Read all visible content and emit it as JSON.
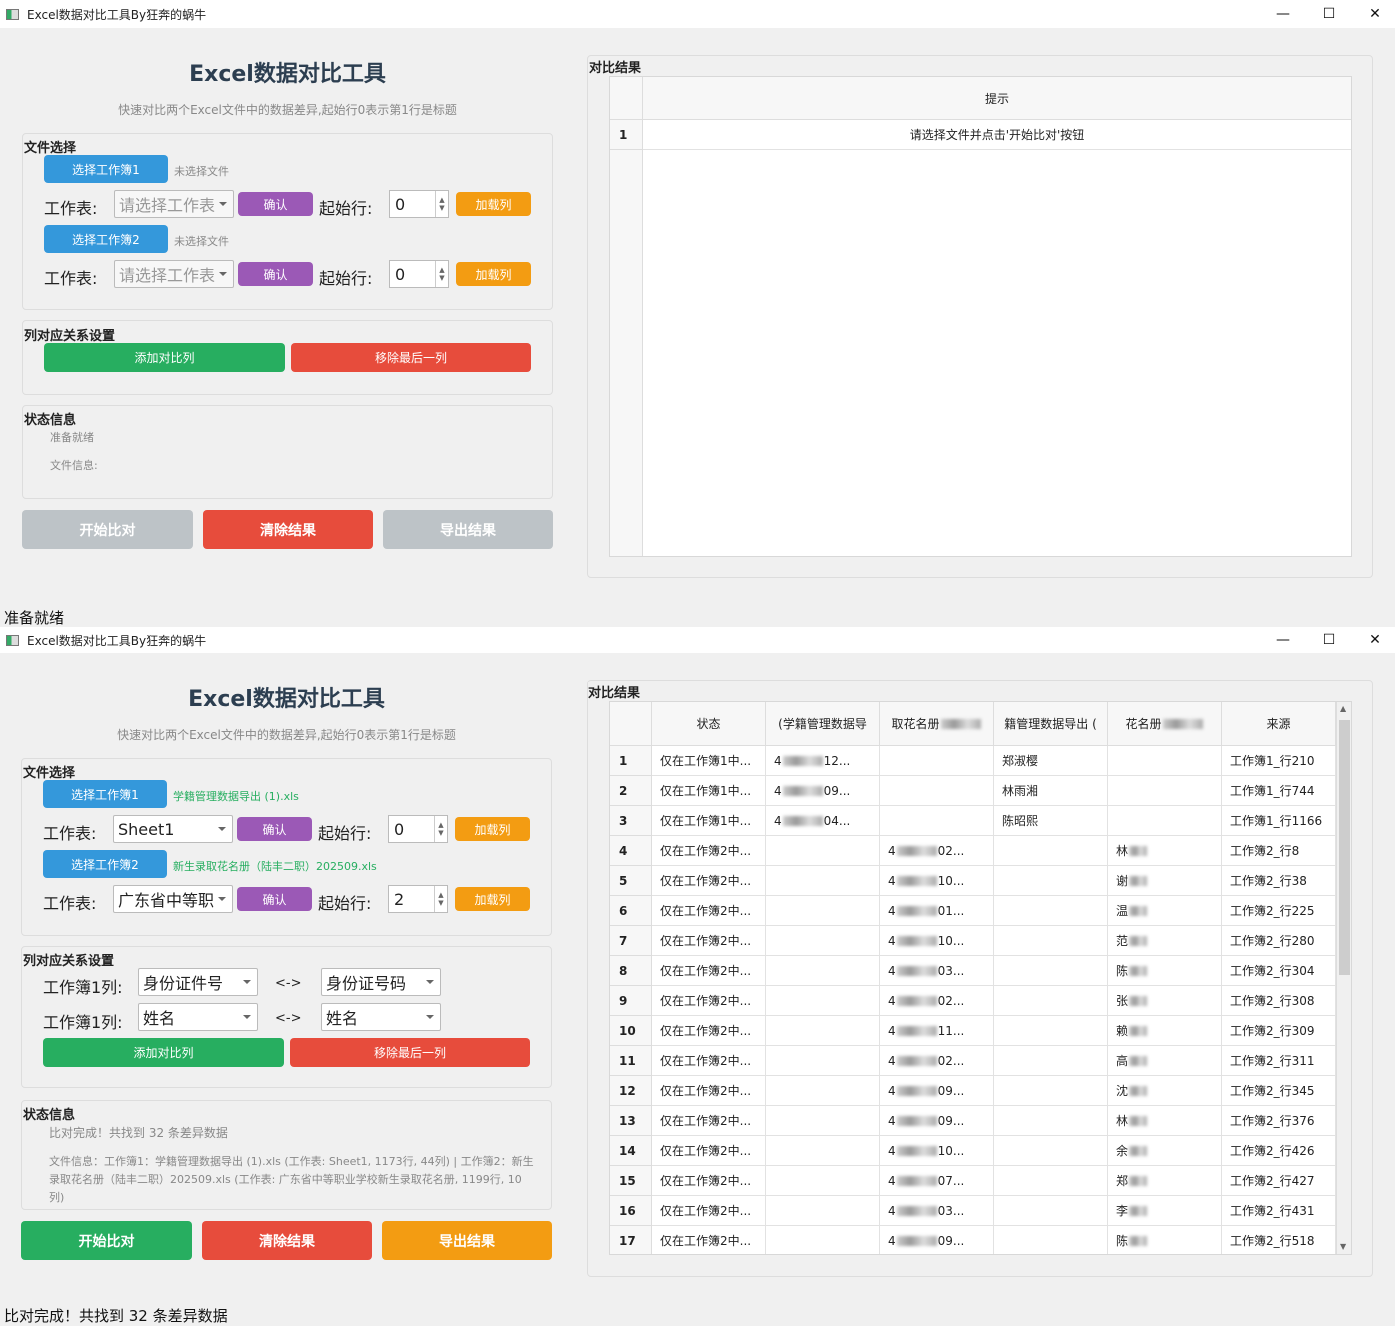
{
  "app": {
    "title": "Excel数据对比工具By狂奔的蜗牛",
    "heading": "Excel数据对比工具",
    "subtitle": "快速对比两个Excel文件中的数据差异,起始行0表示第1行是标题",
    "minimize": "—",
    "maximize": "☐",
    "close": "✕"
  },
  "labels": {
    "file_group": "文件选择",
    "select_wb1": "选择工作簿1",
    "select_wb2": "选择工作簿2",
    "sheet": "工作表:",
    "confirm": "确认",
    "start_row": "起始行:",
    "load_cols": "加载列",
    "mapping_group": "列对应关系设置",
    "add_col": "添加对比列",
    "remove_col": "移除最后一列",
    "status_group": "状态信息",
    "start": "开始比对",
    "clear": "清除结果",
    "export": "导出结果",
    "result_group": "对比结果",
    "arrow": "<->",
    "wb1_col": "工作簿1列:"
  },
  "window1": {
    "wb1_file": "未选择文件",
    "wb2_file": "未选择文件",
    "sheet1": "请选择工作表",
    "sheet2": "请选择工作表",
    "start1": "0",
    "start2": "0",
    "status": "准备就绪",
    "file_info": "文件信息:",
    "table_header": "提示",
    "table_row_num": "1",
    "table_row": "请选择文件并点击'开始比对'按钮",
    "statusbar": "准备就绪"
  },
  "window2": {
    "wb1_file": "学籍管理数据导出 (1).xls",
    "wb2_file": "新生录取花名册（陆丰二职）202509.xls",
    "sheet1": "Sheet1",
    "sheet2": "广东省中等职",
    "start1": "0",
    "start2": "2",
    "mappings": [
      {
        "left": "身份证件号",
        "right": "身份证号码"
      },
      {
        "left": "姓名",
        "right": "姓名"
      }
    ],
    "status": "比对完成！共找到 32 条差异数据",
    "file_info": "文件信息：工作簿1：学籍管理数据导出 (1).xls (工作表: Sheet1, 1173行, 44列) | 工作簿2：新生录取花名册（陆丰二职）202509.xls (工作表: 广东省中等职业学校新生录取花名册, 1199行, 10列)",
    "statusbar": "比对完成！共找到 32 条差异数据",
    "headers": [
      "状态",
      "(学籍管理数据导",
      "取花名册",
      "籍管理数据导出 (",
      "花名册",
      "来源"
    ],
    "rows": [
      {
        "n": "1",
        "status": "仅在工作簿1中...",
        "c2": [
          "4",
          "12..."
        ],
        "c3": null,
        "c4": "郑淑樱",
        "c5": null,
        "src": "工作簿1_行210"
      },
      {
        "n": "2",
        "status": "仅在工作簿1中...",
        "c2": [
          "4",
          "09..."
        ],
        "c3": null,
        "c4": "林雨湘",
        "c5": null,
        "src": "工作簿1_行744"
      },
      {
        "n": "3",
        "status": "仅在工作簿1中...",
        "c2": [
          "4",
          "04..."
        ],
        "c3": null,
        "c4": "陈昭熙",
        "c5": null,
        "src": "工作簿1_行1166"
      },
      {
        "n": "4",
        "status": "仅在工作簿2中...",
        "c2": null,
        "c3": [
          "4",
          "02..."
        ],
        "c4": null,
        "c5": "林",
        "src": "工作簿2_行8"
      },
      {
        "n": "5",
        "status": "仅在工作簿2中...",
        "c2": null,
        "c3": [
          "4",
          "10..."
        ],
        "c4": null,
        "c5": "谢",
        "src": "工作簿2_行38"
      },
      {
        "n": "6",
        "status": "仅在工作簿2中...",
        "c2": null,
        "c3": [
          "4",
          "01..."
        ],
        "c4": null,
        "c5": "温",
        "src": "工作簿2_行225"
      },
      {
        "n": "7",
        "status": "仅在工作簿2中...",
        "c2": null,
        "c3": [
          "4",
          "10..."
        ],
        "c4": null,
        "c5": "范",
        "src": "工作簿2_行280"
      },
      {
        "n": "8",
        "status": "仅在工作簿2中...",
        "c2": null,
        "c3": [
          "4",
          "03..."
        ],
        "c4": null,
        "c5": "陈",
        "src": "工作簿2_行304"
      },
      {
        "n": "9",
        "status": "仅在工作簿2中...",
        "c2": null,
        "c3": [
          "4",
          "02..."
        ],
        "c4": null,
        "c5": "张",
        "src": "工作簿2_行308"
      },
      {
        "n": "10",
        "status": "仅在工作簿2中...",
        "c2": null,
        "c3": [
          "4",
          "11..."
        ],
        "c4": null,
        "c5": "赖",
        "src": "工作簿2_行309"
      },
      {
        "n": "11",
        "status": "仅在工作簿2中...",
        "c2": null,
        "c3": [
          "4",
          "02..."
        ],
        "c4": null,
        "c5": "高",
        "src": "工作簿2_行311"
      },
      {
        "n": "12",
        "status": "仅在工作簿2中...",
        "c2": null,
        "c3": [
          "4",
          "09..."
        ],
        "c4": null,
        "c5": "沈",
        "src": "工作簿2_行345"
      },
      {
        "n": "13",
        "status": "仅在工作簿2中...",
        "c2": null,
        "c3": [
          "4",
          "09..."
        ],
        "c4": null,
        "c5": "林",
        "src": "工作簿2_行376"
      },
      {
        "n": "14",
        "status": "仅在工作簿2中...",
        "c2": null,
        "c3": [
          "4",
          "10..."
        ],
        "c4": null,
        "c5": "余",
        "src": "工作簿2_行426"
      },
      {
        "n": "15",
        "status": "仅在工作簿2中...",
        "c2": null,
        "c3": [
          "4",
          "07..."
        ],
        "c4": null,
        "c5": "郑",
        "src": "工作簿2_行427"
      },
      {
        "n": "16",
        "status": "仅在工作簿2中...",
        "c2": null,
        "c3": [
          "4",
          "03..."
        ],
        "c4": null,
        "c5": "李",
        "src": "工作簿2_行431"
      },
      {
        "n": "17",
        "status": "仅在工作簿2中...",
        "c2": null,
        "c3": [
          "4",
          "09..."
        ],
        "c4": null,
        "c5": "陈",
        "src": "工作簿2_行518"
      }
    ]
  },
  "colors": {
    "blue": "#3498db",
    "purple": "#9b59b6",
    "orange": "#f39c12",
    "green": "#27ae60",
    "red": "#e74c3c",
    "disabled": "#bdc3c7",
    "title": "#2c3e50"
  }
}
